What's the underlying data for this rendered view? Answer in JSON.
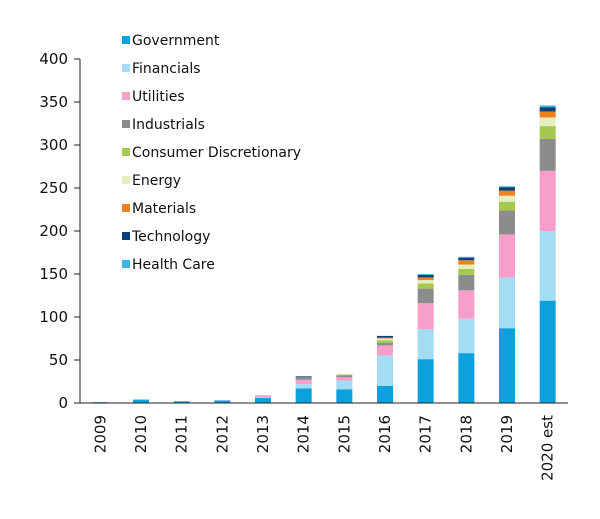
{
  "chart_data": {
    "type": "bar",
    "stacked": true,
    "title": "",
    "xlabel": "",
    "ylabel": "",
    "ylim": [
      0,
      400
    ],
    "yticks": [
      0,
      50,
      100,
      150,
      200,
      250,
      300,
      350,
      400
    ],
    "grid": false,
    "legend_position": "top-left",
    "categories": [
      "2009",
      "2010",
      "2011",
      "2012",
      "2013",
      "2014",
      "2015",
      "2016",
      "2017",
      "2018",
      "2019",
      "2020 est"
    ],
    "series": [
      {
        "name": "Government",
        "color": "#0ca0dd",
        "values": [
          1,
          4,
          2,
          3,
          6,
          17,
          16,
          20,
          51,
          58,
          87,
          119
        ]
      },
      {
        "name": "Financials",
        "color": "#a3dcf3",
        "values": [
          0,
          0,
          0,
          0,
          1,
          5,
          10,
          35,
          35,
          40,
          59,
          81
        ]
      },
      {
        "name": "Utilities",
        "color": "#f79ecb",
        "values": [
          0,
          0,
          0,
          0,
          2,
          5,
          4,
          12,
          30,
          33,
          50,
          70
        ]
      },
      {
        "name": "Industrials",
        "color": "#8c8c8c",
        "values": [
          0,
          0,
          0,
          0,
          0,
          3,
          2,
          3,
          17,
          18,
          28,
          37
        ]
      },
      {
        "name": "Consumer Discretionary",
        "color": "#a5c94e",
        "values": [
          0,
          0,
          0,
          0,
          0,
          0,
          1,
          3,
          6,
          7,
          10,
          15
        ]
      },
      {
        "name": "Energy",
        "color": "#e6eec2",
        "values": [
          0,
          0,
          0,
          0,
          0,
          0,
          1,
          2,
          4,
          5,
          7,
          10
        ]
      },
      {
        "name": "Materials",
        "color": "#f0821e",
        "values": [
          0,
          0,
          0,
          0,
          0,
          0,
          0,
          1,
          3,
          5,
          6,
          7
        ]
      },
      {
        "name": "Technology",
        "color": "#0d3f7a",
        "values": [
          0,
          0,
          0,
          0,
          0,
          1,
          0,
          2,
          3,
          3,
          4,
          5
        ]
      },
      {
        "name": "Health Care",
        "color": "#3fb6e8",
        "values": [
          0,
          0,
          0,
          0,
          0,
          0,
          0,
          0,
          1,
          1,
          1,
          2
        ]
      }
    ]
  }
}
